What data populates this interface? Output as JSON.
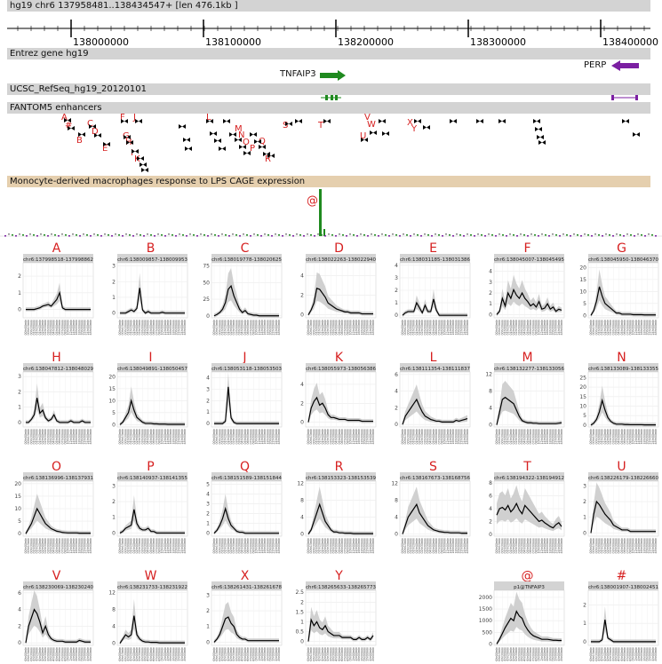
{
  "header": {
    "title": "hg19 chr6 137958481..138434547+ [len 476.1kb ]"
  },
  "ruler": {
    "ticks": [
      "138000000",
      "138100000",
      "138200000",
      "138300000",
      "138400000"
    ]
  },
  "tracks": {
    "entrez": "Entrez gene hg19",
    "refseq": "UCSC_RefSeq_hg19_20120101",
    "fantom": "FANTOM5 enhancers",
    "cage": "Monocyte-derived macrophages response to LPS CAGE expression"
  },
  "genes": {
    "tnfaip3": "TNFAIP3",
    "perp": "PERP"
  },
  "colors": {
    "gene_forward": "#1f8a1f",
    "gene_reverse": "#7b1fa2",
    "label": "#d62020",
    "band": "#c8c8c8",
    "line": "#000000",
    "header": "#d3d3d3",
    "cage_header": "#e5cfae"
  },
  "enhancer_letters": [
    "A",
    "#",
    "B",
    "C",
    "D",
    "E",
    "F",
    "G",
    "H",
    "I",
    "J",
    "K",
    "L",
    "M",
    "N",
    "O",
    "P",
    "Q",
    "R",
    "S",
    "T",
    "U",
    "V",
    "W",
    "X",
    "Y"
  ],
  "cage_marker": "@",
  "x_tick_labels": [
    "00hr00min",
    "00hr15min",
    "00hr30min",
    "01hr00min",
    "01hr20min",
    "01hr40min",
    "02hr00min",
    "02hr30min",
    "03hr00min",
    "03hr30min",
    "04hr00min",
    "05hr00min",
    "06hr00min",
    "07hr00min",
    "08hr00min",
    "10hr00min",
    "12hr00min",
    "14hr00min",
    "16hr00min",
    "18hr00min",
    "20hr00min",
    "22hr00min",
    "24hr00min",
    "48hr00min"
  ],
  "chart_data": [
    {
      "type": "line",
      "letter": "A",
      "title": "chr6:137998518-137998862",
      "ylim": [
        -0.5,
        2.8
      ],
      "yticks": [
        0,
        1,
        2
      ],
      "values": [
        0,
        0,
        0,
        0,
        0.05,
        0.1,
        0.2,
        0.25,
        0.3,
        0.2,
        0.4,
        0.6,
        1.0,
        0.1,
        0,
        0,
        0,
        0,
        0,
        0,
        0,
        0,
        0,
        0
      ]
    },
    {
      "type": "line",
      "letter": "B",
      "title": "chr6:138009857-138009953",
      "ylim": [
        -0.3,
        3.2
      ],
      "yticks": [
        0,
        1,
        2,
        3
      ],
      "values": [
        0,
        0,
        0,
        0.1,
        0.2,
        0.1,
        0.3,
        1.6,
        0.2,
        0,
        0.1,
        0,
        0,
        0,
        0,
        0.05,
        0,
        0,
        0,
        0,
        0,
        0,
        0,
        0
      ]
    },
    {
      "type": "line",
      "letter": "C",
      "title": "chr6:138019778-138020625",
      "ylim": [
        -3,
        80
      ],
      "yticks": [
        0,
        25,
        50,
        75
      ],
      "values": [
        0,
        2,
        5,
        10,
        20,
        40,
        45,
        30,
        20,
        10,
        5,
        8,
        3,
        2,
        1,
        1,
        0,
        0,
        0,
        0,
        0,
        0,
        0,
        0
      ]
    },
    {
      "type": "line",
      "letter": "D",
      "title": "chr6:138022263-138022940",
      "ylim": [
        -0.3,
        5.3
      ],
      "yticks": [
        0,
        2,
        4
      ],
      "values": [
        0,
        0.5,
        1.2,
        2.7,
        2.6,
        2.2,
        1.8,
        1.2,
        1.0,
        0.8,
        0.6,
        0.5,
        0.4,
        0.3,
        0.3,
        0.2,
        0.2,
        0.2,
        0.2,
        0.1,
        0.1,
        0.1,
        0.1,
        0.1
      ]
    },
    {
      "type": "line",
      "letter": "E",
      "title": "chr6:138031185-138031386",
      "ylim": [
        -0.2,
        4.2
      ],
      "yticks": [
        0,
        1,
        2,
        3,
        4
      ],
      "values": [
        0,
        0.2,
        0.3,
        0.3,
        0.3,
        1.0,
        0.6,
        0.2,
        0.8,
        0.3,
        0.3,
        1.3,
        0.4,
        0,
        0,
        0,
        0,
        0,
        0,
        0,
        0,
        0,
        0,
        0
      ]
    },
    {
      "type": "line",
      "letter": "F",
      "title": "chr6:138045007-138045495",
      "ylim": [
        -0.3,
        4.8
      ],
      "yticks": [
        0,
        1,
        2,
        3,
        4
      ],
      "values": [
        0,
        0.3,
        1.5,
        0.8,
        2.0,
        1.5,
        2.3,
        1.8,
        1.5,
        2.0,
        1.5,
        1.2,
        0.8,
        1.0,
        0.7,
        1.2,
        0.5,
        0.6,
        1.0,
        0.5,
        0.7,
        0.3,
        0.5,
        0.4
      ]
    },
    {
      "type": "line",
      "letter": "G",
      "title": "chr6:138045950-138046370",
      "ylim": [
        -1,
        22
      ],
      "yticks": [
        0,
        5,
        10,
        15,
        20
      ],
      "values": [
        0,
        2,
        6,
        12,
        8,
        5,
        4,
        3,
        2,
        1,
        1,
        0.5,
        0.5,
        0.5,
        0.5,
        0.3,
        0.3,
        0.3,
        0.3,
        0.2,
        0.2,
        0.2,
        0.2,
        0.2
      ]
    },
    {
      "type": "line",
      "letter": "H",
      "title": "chr6:138047812-138048029",
      "ylim": [
        -0.3,
        3.3
      ],
      "yticks": [
        0,
        1,
        2,
        3
      ],
      "values": [
        0,
        0,
        0.2,
        0.5,
        1.6,
        0.6,
        0.8,
        0.3,
        0.1,
        0.2,
        0.5,
        0.1,
        0,
        0,
        0,
        0,
        0.1,
        0,
        0,
        0,
        0.1,
        0,
        0,
        0
      ]
    },
    {
      "type": "line",
      "letter": "I",
      "title": "chr6:138049891-138050457",
      "ylim": [
        -1,
        22
      ],
      "yticks": [
        0,
        5,
        10,
        15,
        20
      ],
      "values": [
        0,
        1,
        3,
        5,
        10,
        6,
        3,
        2,
        1,
        0.5,
        0.5,
        0.5,
        0.3,
        0.3,
        0.2,
        0.2,
        0.2,
        0.1,
        0.1,
        0.1,
        0.1,
        0.1,
        0.1,
        0.1
      ]
    },
    {
      "type": "line",
      "letter": "J",
      "title": "chr6:138053118-138053503",
      "ylim": [
        -0.3,
        4.5
      ],
      "yticks": [
        0,
        1,
        2,
        3,
        4
      ],
      "values": [
        0,
        0,
        0,
        0,
        0.2,
        3.2,
        0.5,
        0.1,
        0,
        0,
        0,
        0,
        0,
        0,
        0,
        0,
        0,
        0,
        0,
        0,
        0,
        0,
        0,
        0
      ]
    },
    {
      "type": "line",
      "letter": "K",
      "title": "chr6:138055973-138056386",
      "ylim": [
        -0.5,
        5.3
      ],
      "yticks": [
        0,
        2,
        4
      ],
      "values": [
        0,
        1.5,
        2.2,
        2.6,
        1.8,
        2.0,
        1.5,
        0.8,
        0.5,
        0.5,
        0.4,
        0.3,
        0.3,
        0.3,
        0.2,
        0.2,
        0.2,
        0.2,
        0.2,
        0.1,
        0.1,
        0.1,
        0.1,
        0.1
      ]
    },
    {
      "type": "line",
      "letter": "L",
      "title": "chr6:138111354-138111837",
      "ylim": [
        -0.3,
        6.3
      ],
      "yticks": [
        0,
        2,
        4,
        6
      ],
      "values": [
        0,
        1,
        1.5,
        2.0,
        2.5,
        3.0,
        2.2,
        1.5,
        1.0,
        0.8,
        0.6,
        0.5,
        0.4,
        0.4,
        0.3,
        0.3,
        0.3,
        0.3,
        0.3,
        0.5,
        0.4,
        0.5,
        0.6,
        0.7
      ]
    },
    {
      "type": "line",
      "letter": "M",
      "title": "chr6:138132277-138133056",
      "ylim": [
        -0.5,
        12.5
      ],
      "yticks": [
        0,
        4,
        8,
        12
      ],
      "values": [
        0,
        3,
        6,
        6.5,
        6,
        5.5,
        5,
        3.5,
        2.0,
        1.0,
        0.7,
        0.5,
        0.5,
        0.4,
        0.4,
        0.3,
        0.3,
        0.3,
        0.3,
        0.3,
        0.3,
        0.3,
        0.4,
        0.5
      ]
    },
    {
      "type": "line",
      "letter": "N",
      "title": "chr6:138133089-138133355",
      "ylim": [
        -1,
        28
      ],
      "yticks": [
        0,
        5,
        10,
        15,
        20,
        25
      ],
      "values": [
        0,
        1,
        3,
        7,
        13,
        8,
        4,
        2,
        1,
        0.5,
        0.5,
        0.5,
        0.3,
        0.3,
        0.2,
        0.2,
        0.2,
        0.2,
        0.2,
        0.1,
        0.1,
        0.1,
        0.1,
        0.1
      ]
    },
    {
      "type": "line",
      "letter": "O",
      "title": "chr6:138136996-138137931",
      "ylim": [
        -1,
        21
      ],
      "yticks": [
        0,
        5,
        10,
        15,
        20
      ],
      "values": [
        0,
        2,
        4,
        7,
        10,
        8,
        6,
        4,
        3,
        2,
        1.5,
        1,
        0.8,
        0.5,
        0.4,
        0.3,
        0.3,
        0.3,
        0.3,
        0.2,
        0.2,
        0.2,
        0.2,
        0.2
      ]
    },
    {
      "type": "line",
      "letter": "P",
      "title": "chr6:138140937-138141355",
      "ylim": [
        -0.2,
        3.3
      ],
      "yticks": [
        0,
        1,
        2,
        3
      ],
      "values": [
        0,
        0.1,
        0.3,
        0.4,
        0.5,
        1.5,
        0.6,
        0.3,
        0.2,
        0.2,
        0.3,
        0.1,
        0.1,
        0,
        0,
        0,
        0,
        0,
        0,
        0,
        0,
        0,
        0,
        0
      ]
    },
    {
      "type": "line",
      "letter": "Q",
      "title": "chr6:138151589-138151844",
      "ylim": [
        -0.3,
        5.3
      ],
      "yticks": [
        0,
        1,
        2,
        3,
        4,
        5
      ],
      "values": [
        0,
        0.3,
        0.8,
        1.5,
        2.5,
        1.5,
        0.8,
        0.5,
        0.2,
        0.1,
        0.1,
        0,
        0,
        0,
        0,
        0,
        0,
        0,
        0,
        0,
        0,
        0,
        0,
        0
      ]
    },
    {
      "type": "line",
      "letter": "R",
      "title": "chr6:138153323-138153539",
      "ylim": [
        -0.5,
        12.5
      ],
      "yticks": [
        0,
        4,
        8,
        12
      ],
      "values": [
        0,
        1,
        3,
        5,
        7,
        5,
        3,
        2,
        1,
        0.5,
        0.5,
        0.3,
        0.3,
        0.2,
        0.2,
        0.2,
        0.1,
        0.1,
        0.1,
        0.1,
        0.1,
        0.1,
        0.1,
        0.1
      ]
    },
    {
      "type": "line",
      "letter": "S",
      "title": "chr6:138167673-138168756",
      "ylim": [
        -0.5,
        12.5
      ],
      "yticks": [
        0,
        4,
        8,
        12
      ],
      "values": [
        0,
        2,
        4,
        5,
        6,
        7,
        5,
        4,
        3,
        2,
        1.5,
        1,
        0.8,
        0.6,
        0.5,
        0.4,
        0.4,
        0.3,
        0.3,
        0.3,
        0.3,
        0.2,
        0.2,
        0.2
      ]
    },
    {
      "type": "line",
      "letter": "T",
      "title": "chr6:138194322-138194912",
      "ylim": [
        -0.3,
        8.3
      ],
      "yticks": [
        0,
        2,
        4,
        6,
        8
      ],
      "values": [
        3,
        4,
        4.2,
        3.8,
        4.5,
        3.5,
        4.0,
        4.8,
        3.8,
        3.2,
        4.5,
        4.0,
        3.5,
        3.0,
        2.5,
        2.0,
        2.2,
        1.8,
        1.5,
        1.2,
        1.0,
        1.5,
        1.8,
        1.2
      ]
    },
    {
      "type": "line",
      "letter": "U",
      "title": "chr6:138226179-138226660",
      "ylim": [
        -0.2,
        3.3
      ],
      "yticks": [
        0,
        1,
        2,
        3
      ],
      "values": [
        0,
        1.2,
        2.0,
        1.8,
        1.5,
        1.2,
        1.0,
        0.8,
        0.5,
        0.4,
        0.3,
        0.2,
        0.2,
        0.2,
        0.1,
        0.1,
        0.1,
        0.1,
        0.1,
        0.1,
        0.1,
        0.1,
        0.1,
        0.1
      ]
    },
    {
      "type": "line",
      "letter": "V",
      "title": "chr6:138230069-138230240",
      "ylim": [
        -0.3,
        6.3
      ],
      "yticks": [
        0,
        2,
        4,
        6
      ],
      "values": [
        0,
        2,
        3,
        4,
        3.5,
        2.5,
        1.2,
        2.0,
        1.0,
        0.5,
        0.3,
        0.2,
        0.2,
        0.2,
        0.1,
        0.1,
        0.1,
        0.1,
        0.1,
        0.3,
        0.2,
        0.1,
        0.1,
        0.1
      ]
    },
    {
      "type": "line",
      "letter": "W",
      "title": "chr6:138231733-138231922",
      "ylim": [
        -0.5,
        12.5
      ],
      "yticks": [
        0,
        4,
        8,
        12
      ],
      "values": [
        0,
        1,
        2,
        1.5,
        2.0,
        6.5,
        2.0,
        1.0,
        0.5,
        0.3,
        0.3,
        0.2,
        0.2,
        0.2,
        0.1,
        0.1,
        0.1,
        0.1,
        0.1,
        0.1,
        0.1,
        0.1,
        0.1,
        0.1
      ]
    },
    {
      "type": "line",
      "letter": "X",
      "title": "chr6:138261431-138261678",
      "ylim": [
        -0.2,
        3.3
      ],
      "yticks": [
        0,
        1,
        2,
        3
      ],
      "values": [
        0,
        0.2,
        0.5,
        1.0,
        1.5,
        1.6,
        1.2,
        1.0,
        0.5,
        0.3,
        0.2,
        0.2,
        0.1,
        0.1,
        0.1,
        0.1,
        0.1,
        0.1,
        0.1,
        0.1,
        0.1,
        0.1,
        0.1,
        0.1
      ]
    },
    {
      "type": "line",
      "letter": "Y",
      "title": "chr6:138265633-138265773",
      "ylim": [
        -0.2,
        2.6
      ],
      "yticks": [
        0,
        0.5,
        1,
        1.5,
        2,
        2.5
      ],
      "values": [
        0,
        1.1,
        0.8,
        1.0,
        0.7,
        0.6,
        0.8,
        0.5,
        0.4,
        0.3,
        0.3,
        0.3,
        0.2,
        0.2,
        0.2,
        0.2,
        0.1,
        0.1,
        0.2,
        0.1,
        0.1,
        0.2,
        0.1,
        0.3
      ]
    },
    {
      "type": "line",
      "letter": "@",
      "title": "p1@TNFAIP3",
      "ylim": [
        -60,
        2300
      ],
      "yticks": [
        0,
        500,
        1000,
        1500,
        2000
      ],
      "values": [
        0,
        200,
        450,
        700,
        900,
        1100,
        1000,
        1400,
        1200,
        1100,
        800,
        600,
        450,
        350,
        300,
        250,
        200,
        200,
        200,
        180,
        160,
        160,
        150,
        150
      ]
    },
    {
      "type": "line",
      "letter": "#",
      "title": "chr6:138001907-138002451",
      "ylim": [
        -0.2,
        2.8
      ],
      "yticks": [
        0,
        1,
        2
      ],
      "values": [
        0,
        0,
        0,
        0,
        0.1,
        1.2,
        0.2,
        0.1,
        0,
        0,
        0,
        0,
        0,
        0,
        0,
        0,
        0,
        0,
        0,
        0,
        0,
        0,
        0,
        0
      ]
    }
  ]
}
